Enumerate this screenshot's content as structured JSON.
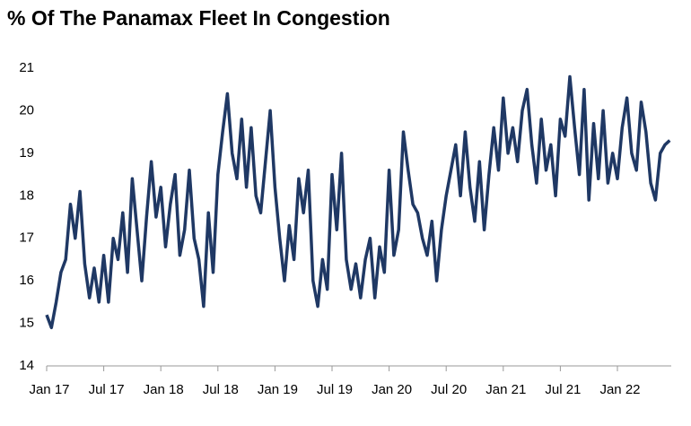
{
  "chart_data": {
    "type": "line",
    "title": "% Of The Panamax Fleet In Congestion",
    "categories": [
      "Jan 17",
      null,
      null,
      null,
      null,
      null,
      null,
      null,
      null,
      null,
      null,
      null,
      "Jul 17",
      null,
      null,
      null,
      null,
      null,
      null,
      null,
      null,
      null,
      null,
      null,
      "Jan 18",
      null,
      null,
      null,
      null,
      null,
      null,
      null,
      null,
      null,
      null,
      null,
      "Jul 18",
      null,
      null,
      null,
      null,
      null,
      null,
      null,
      null,
      null,
      null,
      null,
      "Jan 19",
      null,
      null,
      null,
      null,
      null,
      null,
      null,
      null,
      null,
      null,
      null,
      "Jul 19",
      null,
      null,
      null,
      null,
      null,
      null,
      null,
      null,
      null,
      null,
      null,
      "Jan 20",
      null,
      null,
      null,
      null,
      null,
      null,
      null,
      null,
      null,
      null,
      null,
      "Jul 20",
      null,
      null,
      null,
      null,
      null,
      null,
      null,
      null,
      null,
      null,
      null,
      "Jan 21",
      null,
      null,
      null,
      null,
      null,
      null,
      null,
      null,
      null,
      null,
      null,
      "Jul 21",
      null,
      null,
      null,
      null,
      null,
      null,
      null,
      null,
      null,
      null,
      null,
      "Jan 22",
      null,
      null,
      null,
      null,
      null,
      null,
      null,
      null,
      null,
      null,
      null
    ],
    "series": [
      {
        "color": "#1f3864",
        "values": [
          15.2,
          14.9,
          15.5,
          16.2,
          16.5,
          17.8,
          17.0,
          18.1,
          16.4,
          15.6,
          16.3,
          15.5,
          16.6,
          15.5,
          17.0,
          16.5,
          17.6,
          16.2,
          18.4,
          17.2,
          16.0,
          17.5,
          18.8,
          17.5,
          18.2,
          16.8,
          17.8,
          18.5,
          16.6,
          17.2,
          18.6,
          17.0,
          16.5,
          15.4,
          17.6,
          16.2,
          18.5,
          19.5,
          20.4,
          19.0,
          18.4,
          19.8,
          18.2,
          19.6,
          18.0,
          17.6,
          18.8,
          20.0,
          18.2,
          17.0,
          16.0,
          17.3,
          16.5,
          18.4,
          17.6,
          18.6,
          16.0,
          15.4,
          16.5,
          15.8,
          18.5,
          17.2,
          19.0,
          16.5,
          15.8,
          16.4,
          15.6,
          16.5,
          17.0,
          15.6,
          16.8,
          16.2,
          18.6,
          16.6,
          17.2,
          19.5,
          18.6,
          17.8,
          17.6,
          17.0,
          16.6,
          17.4,
          16.0,
          17.2,
          18.0,
          18.6,
          19.2,
          18.0,
          19.5,
          18.2,
          17.4,
          18.8,
          17.2,
          18.5,
          19.6,
          18.6,
          20.3,
          19.0,
          19.6,
          18.8,
          20.0,
          20.5,
          19.2,
          18.3,
          19.8,
          18.6,
          19.2,
          18.0,
          19.8,
          19.4,
          20.8,
          19.6,
          18.5,
          20.5,
          17.9,
          19.7,
          18.4,
          20.0,
          18.3,
          19.0,
          18.4,
          19.6,
          20.3,
          19.0,
          18.6,
          20.2,
          19.5,
          18.3,
          17.9,
          19.0,
          19.2,
          19.3
        ]
      }
    ],
    "ylim": [
      14,
      21
    ],
    "yticks": [
      14,
      15,
      16,
      17,
      18,
      19,
      20,
      21
    ],
    "grid": false
  }
}
